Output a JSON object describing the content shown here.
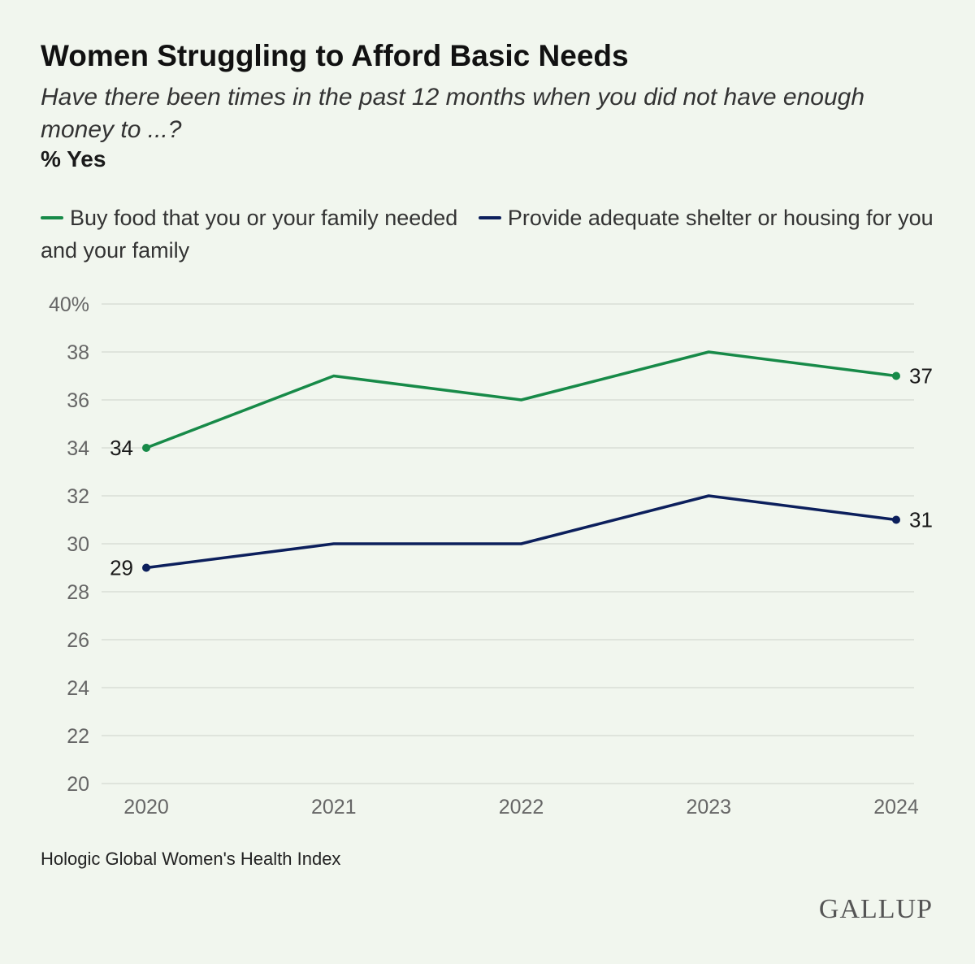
{
  "title": "Women Struggling to Afford Basic Needs",
  "subtitle": "Have there been times in the past 12 months when you did not have enough money to ...?",
  "unit_label": "% Yes",
  "source": "Hologic Global Women's Health Index",
  "logo_text": "GALLUP",
  "colors": {
    "food": "#178a48",
    "shelter": "#0c1f5c",
    "grid": "#d9ddd6",
    "tick": "#666666",
    "background": "#f1f6ee"
  },
  "chart_data": {
    "type": "line",
    "x": [
      "2020",
      "2021",
      "2022",
      "2023",
      "2024"
    ],
    "ylim": [
      20,
      40
    ],
    "y_ticks": [
      20,
      22,
      24,
      26,
      28,
      30,
      32,
      34,
      36,
      38,
      40
    ],
    "y_tick_labels": [
      "20",
      "22",
      "24",
      "26",
      "28",
      "30",
      "32",
      "34",
      "36",
      "38",
      "40%"
    ],
    "grid": true,
    "legend_position": "top-left",
    "series": [
      {
        "name": "Buy food that you or your family needed",
        "color_key": "food",
        "values": [
          34,
          37,
          36,
          38,
          37
        ],
        "labels": [
          {
            "index": 0,
            "text": "34",
            "side": "left"
          },
          {
            "index": 4,
            "text": "37",
            "side": "right"
          }
        ]
      },
      {
        "name": "Provide adequate shelter or housing for you and your family",
        "color_key": "shelter",
        "values": [
          29,
          30,
          30,
          32,
          31
        ],
        "labels": [
          {
            "index": 0,
            "text": "29",
            "side": "left"
          },
          {
            "index": 4,
            "text": "31",
            "side": "right"
          }
        ]
      }
    ]
  }
}
